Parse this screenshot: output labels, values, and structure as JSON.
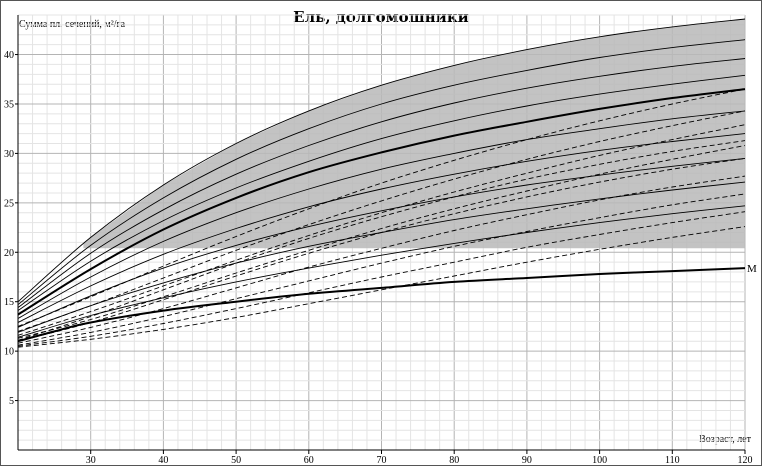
{
  "chart_data": {
    "type": "line",
    "title": "Ель, долгомошники",
    "xlabel": "Возраст, лет",
    "ylabel": "Сумма пл. сечений, м²/га",
    "xlim": [
      20,
      120
    ],
    "ylim": [
      0,
      44
    ],
    "xticks": [
      30,
      40,
      50,
      60,
      70,
      80,
      90,
      100,
      110,
      120
    ],
    "yticks": [
      5,
      10,
      15,
      20,
      25,
      30,
      35,
      40
    ],
    "grid": true,
    "shaded_band": {
      "lower": 20.4,
      "upper_series": "upper_envelope",
      "color": "#b9b9b9"
    },
    "series": [
      {
        "id": "upper_envelope",
        "style": "solid",
        "weight": "thin",
        "x": [
          20,
          30,
          40,
          50,
          60,
          70,
          80,
          90,
          100,
          110,
          120
        ],
        "y": [
          15.0,
          21.5,
          26.8,
          31.0,
          34.3,
          36.9,
          38.9,
          40.5,
          41.8,
          42.8,
          43.6
        ]
      },
      {
        "id": "solid_2",
        "style": "solid",
        "weight": "thin",
        "x": [
          20,
          30,
          40,
          50,
          60,
          70,
          80,
          90,
          100,
          110,
          120
        ],
        "y": [
          14.7,
          20.7,
          25.5,
          29.4,
          32.5,
          35.0,
          36.9,
          38.4,
          39.7,
          40.7,
          41.5
        ]
      },
      {
        "id": "solid_3",
        "style": "solid",
        "weight": "thin",
        "x": [
          20,
          30,
          40,
          50,
          60,
          70,
          80,
          90,
          100,
          110,
          120
        ],
        "y": [
          14.4,
          19.9,
          24.3,
          27.9,
          30.8,
          33.2,
          35.1,
          36.6,
          37.8,
          38.8,
          39.6
        ]
      },
      {
        "id": "solid_4",
        "style": "solid",
        "weight": "thin",
        "x": [
          20,
          30,
          40,
          50,
          60,
          70,
          80,
          90,
          100,
          110,
          120
        ],
        "y": [
          14.1,
          19.1,
          23.2,
          26.5,
          29.2,
          31.5,
          33.3,
          34.8,
          36.0,
          37.0,
          37.9
        ]
      },
      {
        "id": "solid_main",
        "style": "solid",
        "weight": "bold",
        "x": [
          20,
          30,
          40,
          50,
          60,
          70,
          80,
          90,
          100,
          110,
          120
        ],
        "y": [
          13.7,
          18.3,
          22.3,
          25.5,
          28.1,
          30.1,
          31.8,
          33.2,
          34.5,
          35.6,
          36.5
        ]
      },
      {
        "id": "solid_6",
        "style": "solid",
        "weight": "thin",
        "x": [
          20,
          30,
          40,
          50,
          60,
          70,
          80,
          90,
          100,
          110,
          120
        ],
        "y": [
          13.3,
          17.5,
          21.1,
          24.0,
          26.4,
          28.4,
          30.0,
          31.4,
          32.5,
          33.5,
          34.3
        ]
      },
      {
        "id": "solid_7",
        "style": "solid",
        "weight": "thin",
        "x": [
          20,
          30,
          40,
          50,
          60,
          70,
          80,
          90,
          100,
          110,
          120
        ],
        "y": [
          12.9,
          16.6,
          19.8,
          22.4,
          24.6,
          26.4,
          27.9,
          29.2,
          30.3,
          31.2,
          32.0
        ]
      },
      {
        "id": "solid_8",
        "style": "solid",
        "weight": "thin",
        "x": [
          20,
          30,
          40,
          50,
          60,
          70,
          80,
          90,
          100,
          110,
          120
        ],
        "y": [
          12.4,
          15.6,
          18.4,
          20.7,
          22.6,
          24.2,
          25.6,
          26.8,
          27.8,
          28.7,
          29.5
        ]
      },
      {
        "id": "solid_9",
        "style": "solid",
        "weight": "thin",
        "x": [
          20,
          30,
          40,
          50,
          60,
          70,
          80,
          90,
          100,
          110,
          120
        ],
        "y": [
          11.9,
          14.6,
          16.9,
          18.9,
          20.6,
          22.0,
          23.3,
          24.4,
          25.4,
          26.3,
          27.1
        ]
      },
      {
        "id": "solid_10",
        "style": "solid",
        "weight": "thin",
        "x": [
          20,
          30,
          40,
          50,
          60,
          70,
          80,
          90,
          100,
          110,
          120
        ],
        "y": [
          11.4,
          13.6,
          15.4,
          17.0,
          18.4,
          19.7,
          20.9,
          22.0,
          23.0,
          23.9,
          24.7
        ]
      },
      {
        "id": "dashed_1",
        "style": "dashed",
        "weight": "thin",
        "x": [
          20,
          30,
          40,
          50,
          60,
          70,
          80,
          90,
          100,
          110,
          120
        ],
        "y": [
          11.1,
          13.5,
          16.2,
          18.9,
          21.4,
          23.6,
          25.6,
          27.4,
          28.9,
          30.2,
          31.3
        ]
      },
      {
        "id": "dashed_2",
        "style": "dashed",
        "weight": "thin",
        "x": [
          20,
          30,
          40,
          50,
          60,
          70,
          80,
          90,
          100,
          110,
          120
        ],
        "y": [
          11.0,
          12.9,
          15.2,
          17.6,
          19.9,
          22.0,
          23.9,
          25.6,
          27.1,
          28.4,
          29.5
        ]
      },
      {
        "id": "dashed_3",
        "style": "dashed",
        "weight": "thin",
        "x": [
          20,
          30,
          40,
          50,
          60,
          70,
          80,
          90,
          100,
          110,
          120
        ],
        "y": [
          10.8,
          12.4,
          14.3,
          16.4,
          18.5,
          20.4,
          22.2,
          23.8,
          25.3,
          26.6,
          27.7
        ]
      },
      {
        "id": "dashed_4",
        "style": "dashed",
        "weight": "thin",
        "x": [
          20,
          30,
          40,
          50,
          60,
          70,
          80,
          90,
          100,
          110,
          120
        ],
        "y": [
          10.6,
          11.9,
          13.5,
          15.3,
          17.1,
          18.9,
          20.6,
          22.1,
          23.5,
          24.8,
          25.9
        ]
      },
      {
        "id": "dashed_5",
        "style": "dashed",
        "weight": "thin",
        "x": [
          20,
          30,
          40,
          50,
          60,
          70,
          80,
          90,
          100,
          110,
          120
        ],
        "y": [
          10.5,
          11.5,
          12.8,
          14.3,
          15.9,
          17.5,
          19.0,
          20.5,
          21.8,
          23.0,
          24.1
        ]
      },
      {
        "id": "dashed_6",
        "style": "dashed",
        "weight": "thin",
        "x": [
          20,
          30,
          40,
          50,
          60,
          70,
          80,
          90,
          100,
          110,
          120
        ],
        "y": [
          10.4,
          11.2,
          12.2,
          13.4,
          14.8,
          16.2,
          17.6,
          19.0,
          20.3,
          21.5,
          22.6
        ]
      },
      {
        "id": "dashed_7",
        "style": "dashed",
        "weight": "thin",
        "x": [
          20,
          30,
          40,
          50,
          60,
          70,
          80,
          90,
          100,
          110,
          120
        ],
        "y": [
          12.5,
          15.5,
          18.6,
          21.6,
          24.4,
          27.0,
          29.3,
          31.4,
          33.3,
          35.0,
          36.5
        ]
      },
      {
        "id": "dashed_8",
        "style": "dashed",
        "weight": "thin",
        "x": [
          20,
          30,
          40,
          50,
          60,
          70,
          80,
          90,
          100,
          110,
          120
        ],
        "y": [
          12.0,
          14.6,
          17.4,
          20.2,
          22.8,
          25.2,
          27.4,
          29.4,
          31.2,
          32.8,
          34.3
        ]
      },
      {
        "id": "dashed_9",
        "style": "dashed",
        "weight": "thin",
        "x": [
          20,
          30,
          40,
          50,
          60,
          70,
          80,
          90,
          100,
          110,
          120
        ],
        "y": [
          11.6,
          14.0,
          16.6,
          19.2,
          21.7,
          24.0,
          26.1,
          28.0,
          29.8,
          31.4,
          32.9
        ]
      },
      {
        "id": "dashed_10",
        "style": "dashed",
        "weight": "thin",
        "x": [
          20,
          30,
          40,
          50,
          60,
          70,
          80,
          90,
          100,
          110,
          120
        ],
        "y": [
          11.3,
          13.2,
          15.5,
          17.9,
          20.2,
          22.4,
          24.4,
          26.2,
          27.9,
          29.4,
          30.8
        ]
      },
      {
        "id": "M",
        "label": "M",
        "style": "solid",
        "weight": "bold",
        "x": [
          20,
          25,
          30,
          40,
          50,
          60,
          70,
          80,
          90,
          100,
          110,
          120
        ],
        "y": [
          11.0,
          12.0,
          12.9,
          14.1,
          15.0,
          15.8,
          16.4,
          17.0,
          17.4,
          17.8,
          18.1,
          18.4
        ]
      }
    ]
  }
}
